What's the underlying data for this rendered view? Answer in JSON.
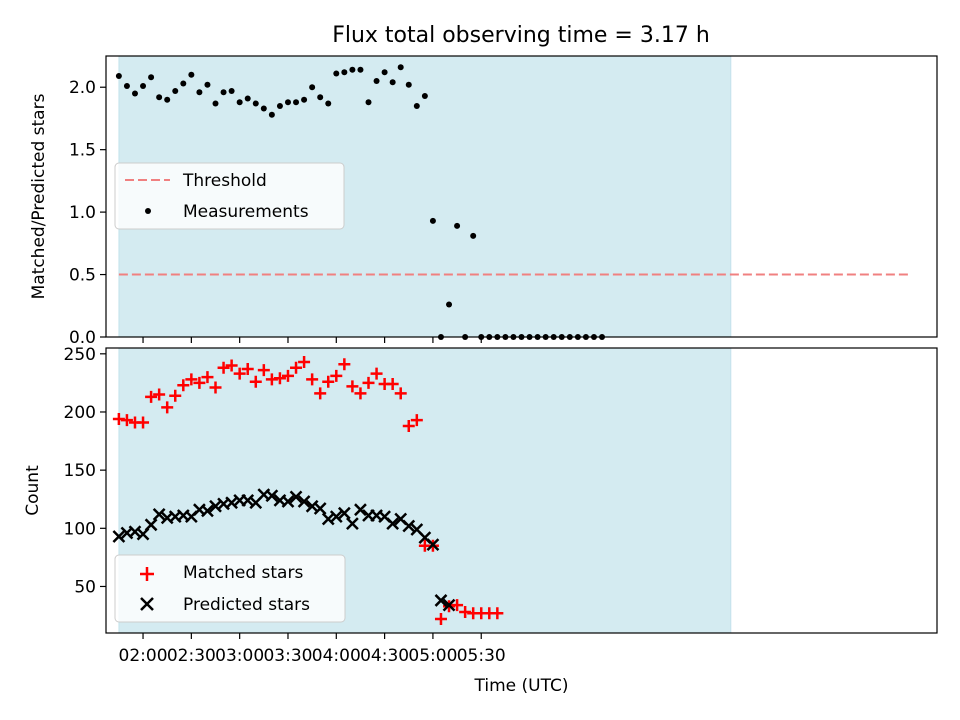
{
  "title": "Flux total observing time = 3.17 h",
  "colors": {
    "shade": "#d4ebf1",
    "threshold": "#f08080",
    "measurement": "#000000",
    "matched": "#ff0000",
    "predicted": "#000000"
  },
  "chart_data": [
    {
      "type": "scatter",
      "panel": "top",
      "ylabel": "Matched/Predicted stars",
      "xlim_minutes": [
        97,
        613
      ],
      "ylim": [
        0,
        2.25
      ],
      "yticks": [
        0.0,
        0.5,
        1.0,
        1.5,
        2.0
      ],
      "ytick_labels": [
        "0.0",
        "0.5",
        "1.0",
        "1.5",
        "2.0"
      ],
      "shaded_span_minutes": [
        105,
        485
      ],
      "threshold": {
        "label": "Threshold",
        "value": 0.5,
        "x_range_minutes": [
          105,
          595
        ],
        "style": "dashed"
      },
      "legend": {
        "location": "center-left",
        "entries": [
          "Threshold",
          "Measurements"
        ]
      },
      "series": [
        {
          "name": "Measurements",
          "marker": "dot",
          "x_minutes": [
            105,
            110,
            115,
            120,
            125,
            130,
            135,
            140,
            145,
            150,
            155,
            160,
            165,
            170,
            175,
            180,
            185,
            190,
            195,
            200,
            205,
            210,
            215,
            220,
            225,
            230,
            235,
            240,
            245,
            250,
            255,
            260,
            265,
            270,
            275,
            280,
            285,
            290,
            295,
            300,
            305,
            310,
            315,
            320,
            325,
            330,
            335,
            340,
            345,
            350,
            355,
            360,
            365,
            370,
            375,
            380,
            385,
            390,
            395,
            400,
            405
          ],
          "values": [
            2.09,
            2.01,
            1.95,
            2.01,
            2.08,
            1.92,
            1.9,
            1.97,
            2.03,
            2.1,
            1.96,
            2.02,
            1.87,
            1.96,
            1.97,
            1.88,
            1.91,
            1.87,
            1.83,
            1.78,
            1.85,
            1.88,
            1.88,
            1.9,
            2.0,
            1.92,
            1.87,
            2.11,
            2.12,
            2.14,
            2.14,
            1.88,
            2.05,
            2.12,
            2.04,
            2.16,
            2.02,
            1.85,
            1.93,
            0.93,
            0.0,
            0.26,
            0.89,
            0.0,
            0.81,
            0.0,
            0.0,
            0.0,
            0.0,
            0.0,
            0.0,
            0.0,
            0.0,
            0.0,
            0.0,
            0.0,
            0.0,
            0.0,
            0.0,
            0.0,
            0.0
          ]
        }
      ]
    },
    {
      "type": "scatter",
      "panel": "bottom",
      "xlabel": "Time (UTC)",
      "ylabel": "Count",
      "xlim_minutes": [
        97,
        613
      ],
      "ylim": [
        10,
        255
      ],
      "yticks": [
        50,
        100,
        150,
        200,
        250
      ],
      "ytick_labels": [
        "50",
        "100",
        "150",
        "200",
        "250"
      ],
      "xticks_minutes": [
        120,
        150,
        180,
        210,
        240,
        270,
        300,
        330
      ],
      "xtick_labels": [
        "02:00",
        "02:30",
        "03:00",
        "03:30",
        "04:00",
        "04:30",
        "05:00",
        "05:30"
      ],
      "shaded_span_minutes": [
        105,
        485
      ],
      "legend": {
        "location": "lower-left",
        "entries": [
          "Matched stars",
          "Predicted stars"
        ]
      },
      "series": [
        {
          "name": "Matched stars",
          "marker": "plus",
          "x_minutes": [
            105,
            110,
            115,
            120,
            125,
            130,
            135,
            140,
            145,
            150,
            155,
            160,
            165,
            170,
            175,
            180,
            185,
            190,
            195,
            200,
            205,
            210,
            215,
            220,
            225,
            230,
            235,
            240,
            245,
            250,
            255,
            260,
            265,
            270,
            275,
            280,
            285,
            290,
            295,
            300,
            305,
            310,
            315,
            320,
            325,
            330,
            335,
            340
          ],
          "values": [
            194,
            193,
            191,
            191,
            213,
            215,
            204,
            214,
            223,
            228,
            225,
            230,
            221,
            238,
            240,
            233,
            237,
            226,
            236,
            228,
            229,
            231,
            238,
            243,
            228,
            216,
            226,
            231,
            241,
            222,
            216,
            225,
            233,
            224,
            224,
            216,
            188,
            193,
            85,
            85,
            22,
            33,
            34,
            28,
            27,
            27,
            27,
            27
          ]
        },
        {
          "name": "Predicted stars",
          "marker": "x",
          "x_minutes": [
            105,
            110,
            115,
            120,
            125,
            130,
            135,
            140,
            145,
            150,
            155,
            160,
            165,
            170,
            175,
            180,
            185,
            190,
            195,
            200,
            205,
            210,
            215,
            220,
            225,
            230,
            235,
            240,
            245,
            250,
            255,
            260,
            265,
            270,
            275,
            280,
            285,
            290,
            295,
            300,
            305,
            310
          ],
          "values": [
            93,
            96,
            97,
            95,
            103,
            112,
            109,
            110,
            111,
            110,
            116,
            115,
            119,
            121,
            122,
            124,
            124,
            122,
            129,
            128,
            124,
            123,
            127,
            123,
            119,
            117,
            108,
            110,
            113,
            104,
            116,
            111,
            111,
            110,
            104,
            108,
            102,
            99,
            92,
            86,
            38,
            34
          ]
        }
      ]
    }
  ]
}
